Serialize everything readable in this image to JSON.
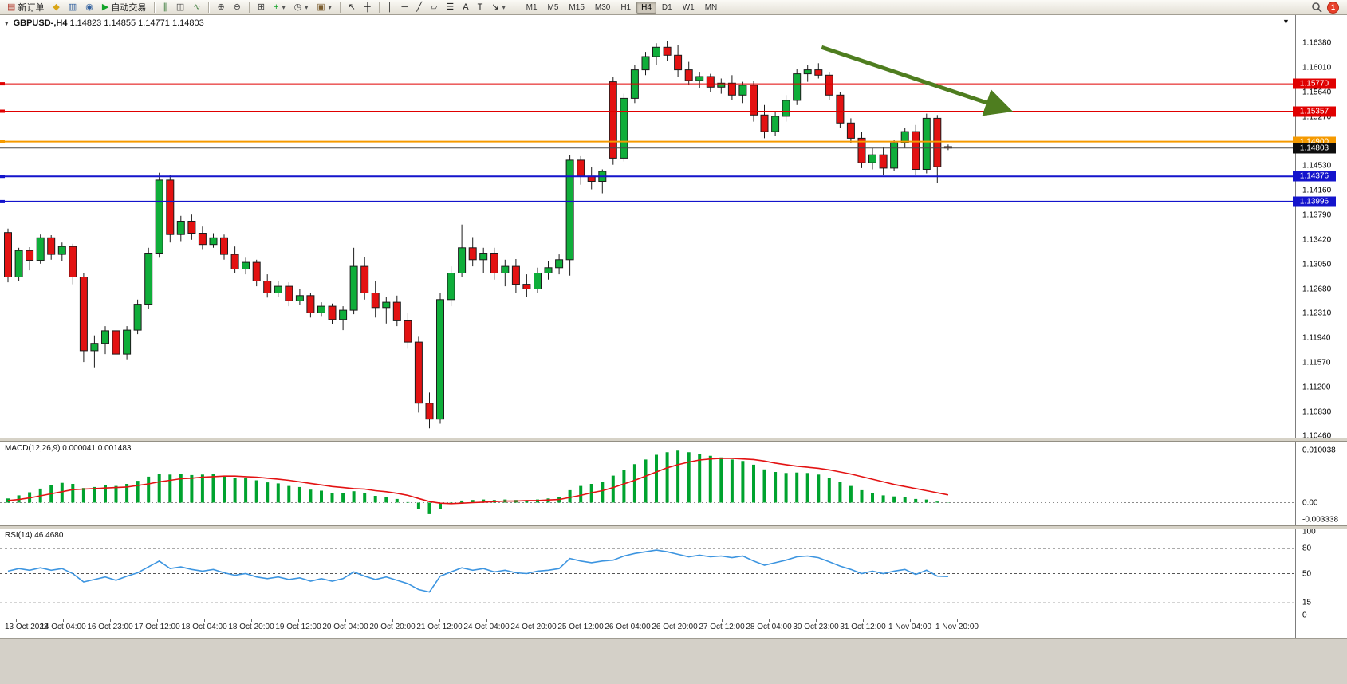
{
  "window": {
    "toolbar": {
      "items": [
        {
          "name": "new-order",
          "glyph": "▤",
          "color": "#b23b2e",
          "label": "新订单"
        },
        {
          "name": "alerts",
          "glyph": "◆",
          "color": "#d9a514"
        },
        {
          "name": "market-depth",
          "glyph": "▥",
          "color": "#33619e"
        },
        {
          "name": "community",
          "glyph": "◉",
          "color": "#33619e"
        },
        {
          "name": "auto-trading",
          "glyph": "▶",
          "color": "#12a428",
          "label": "自动交易"
        },
        {
          "sep": true
        },
        {
          "name": "chart-bars",
          "glyph": "∥",
          "color": "#3f7d3f"
        },
        {
          "name": "chart-candles",
          "glyph": "◫",
          "color": "#3f3f3f"
        },
        {
          "name": "chart-line",
          "glyph": "∿",
          "color": "#3f7d3f"
        },
        {
          "sep": true
        },
        {
          "name": "zoom-in",
          "glyph": "⊕",
          "color": "#444444"
        },
        {
          "name": "zoom-out",
          "glyph": "⊖",
          "color": "#444444"
        },
        {
          "sep": true
        },
        {
          "name": "tile-windows",
          "glyph": "⊞",
          "color": "#444444"
        },
        {
          "name": "indicators",
          "glyph": "+",
          "color": "#12a428",
          "dropdown": true
        },
        {
          "name": "periods",
          "glyph": "◷",
          "color": "#444444",
          "dropdown": true
        },
        {
          "name": "templates",
          "glyph": "▣",
          "color": "#7a5c2e",
          "dropdown": true
        },
        {
          "sep": true
        },
        {
          "name": "cursor",
          "glyph": "↖",
          "color": "#222222"
        },
        {
          "name": "crosshair",
          "glyph": "┼",
          "color": "#222222"
        },
        {
          "sep": true
        },
        {
          "name": "vertical-line",
          "glyph": "│",
          "color": "#222222"
        },
        {
          "name": "horizontal-line",
          "glyph": "─",
          "color": "#222222"
        },
        {
          "name": "trendline",
          "glyph": "╱",
          "color": "#222222"
        },
        {
          "name": "equidistant-channel",
          "glyph": "▱",
          "color": "#222222"
        },
        {
          "name": "fibonacci",
          "gly_x": "",
          "glyph": "☰",
          "color": "#222222"
        },
        {
          "name": "text",
          "glyph": "A",
          "color": "#222222"
        },
        {
          "name": "text-label",
          "glyph": "T",
          "color": "#222222"
        },
        {
          "name": "arrows-tool",
          "glyph": "↘",
          "color": "#222222",
          "dropdown": true
        }
      ],
      "timeframes": [
        "M1",
        "M5",
        "M15",
        "M30",
        "H1",
        "H4",
        "D1",
        "W1",
        "MN"
      ],
      "active_timeframe": "H4",
      "notification_count": "1"
    }
  },
  "chart_data": [
    {
      "type": "candlestick",
      "title": "GBPUSD-,H4",
      "ohlc_label": "1.14823 1.14855 1.14771 1.14803",
      "collapse_arrow": "▾",
      "shift_marker": "▼",
      "ylim": [
        1.1044,
        1.1666
      ],
      "y_ticks": [
        "1.16380",
        "1.16010",
        "1.15640",
        "1.15270",
        "1.14900",
        "1.14530",
        "1.14160",
        "1.13790",
        "1.13420",
        "1.13050",
        "1.12680",
        "1.12310",
        "1.11940",
        "1.11570",
        "1.11200",
        "1.10830",
        "1.10460"
      ],
      "x_labels": [
        "13 Oct 2022",
        "14 Oct 04:00",
        "16 Oct 23:00",
        "17 Oct 12:00",
        "18 Oct 04:00",
        "18 Oct 20:00",
        "19 Oct 12:00",
        "20 Oct 04:00",
        "20 Oct 20:00",
        "21 Oct 12:00",
        "24 Oct 04:00",
        "24 Oct 20:00",
        "25 Oct 12:00",
        "26 Oct 04:00",
        "26 Oct 20:00",
        "27 Oct 12:00",
        "28 Oct 04:00",
        "30 Oct 23:00",
        "31 Oct 12:00",
        "1 Nov 04:00",
        "1 Nov 20:00"
      ],
      "colors": {
        "up": "#0fae3a",
        "down": "#e31212",
        "outline": "#1c1c1c",
        "bid_line": "#4a4a4a",
        "bid_label_bg": "#0d0d0d"
      },
      "hlines": [
        {
          "price": 1.1577,
          "label": "1.15770",
          "color": "#e00000",
          "width": 1
        },
        {
          "price": 1.15357,
          "label": "1.15357",
          "color": "#e00000",
          "width": 1
        },
        {
          "price": 1.149,
          "label": "1.14900",
          "color": "#f59a00",
          "width": 2
        },
        {
          "price": 1.14376,
          "label": "1.14376",
          "color": "#1414cc",
          "width": 2
        },
        {
          "price": 1.13996,
          "label": "1.13996",
          "color": "#1414cc",
          "width": 2
        }
      ],
      "bid": {
        "price": 1.14803,
        "label": "1.14803"
      },
      "trend_arrow": {
        "color": "#4e7d1f",
        "from": {
          "bar": 75.3,
          "price": 1.1632
        },
        "to": {
          "bar": 92.3,
          "price": 1.1539
        }
      },
      "candles": [
        [
          1.1353,
          1.1359,
          1.1278,
          1.1286
        ],
        [
          1.1286,
          1.133,
          1.128,
          1.1326
        ],
        [
          1.1326,
          1.1331,
          1.1296,
          1.1311
        ],
        [
          1.1311,
          1.135,
          1.1306,
          1.1345
        ],
        [
          1.1345,
          1.1349,
          1.1312,
          1.132
        ],
        [
          1.132,
          1.1338,
          1.131,
          1.1332
        ],
        [
          1.1332,
          1.1336,
          1.1275,
          1.1286
        ],
        [
          1.1286,
          1.1292,
          1.1158,
          1.1175
        ],
        [
          1.1175,
          1.1198,
          1.115,
          1.1186
        ],
        [
          1.1186,
          1.1212,
          1.117,
          1.1205
        ],
        [
          1.1205,
          1.1215,
          1.1152,
          1.117
        ],
        [
          1.117,
          1.1212,
          1.1162,
          1.1206
        ],
        [
          1.1206,
          1.1252,
          1.12,
          1.1245
        ],
        [
          1.1245,
          1.133,
          1.1238,
          1.1322
        ],
        [
          1.1322,
          1.1443,
          1.1315,
          1.1432
        ],
        [
          1.1432,
          1.144,
          1.1338,
          1.135
        ],
        [
          1.135,
          1.1378,
          1.134,
          1.137
        ],
        [
          1.137,
          1.138,
          1.1342,
          1.1352
        ],
        [
          1.1352,
          1.1362,
          1.1328,
          1.1335
        ],
        [
          1.1335,
          1.1352,
          1.133,
          1.1345
        ],
        [
          1.1345,
          1.135,
          1.1312,
          1.132
        ],
        [
          1.132,
          1.1332,
          1.1292,
          1.1298
        ],
        [
          1.1298,
          1.1315,
          1.129,
          1.1308
        ],
        [
          1.1308,
          1.1312,
          1.1272,
          1.128
        ],
        [
          1.128,
          1.129,
          1.1255,
          1.1262
        ],
        [
          1.1262,
          1.128,
          1.1256,
          1.1272
        ],
        [
          1.1272,
          1.1278,
          1.1242,
          1.125
        ],
        [
          1.125,
          1.1268,
          1.1244,
          1.1258
        ],
        [
          1.1258,
          1.1262,
          1.1225,
          1.1232
        ],
        [
          1.1232,
          1.1248,
          1.1226,
          1.1242
        ],
        [
          1.1242,
          1.1246,
          1.1215,
          1.1222
        ],
        [
          1.1222,
          1.1242,
          1.1206,
          1.1236
        ],
        [
          1.1236,
          1.133,
          1.123,
          1.1302
        ],
        [
          1.1302,
          1.1316,
          1.1252,
          1.1262
        ],
        [
          1.1262,
          1.128,
          1.1225,
          1.124
        ],
        [
          1.124,
          1.1256,
          1.1216,
          1.1248
        ],
        [
          1.1248,
          1.1258,
          1.1212,
          1.122
        ],
        [
          1.122,
          1.1232,
          1.1178,
          1.1188
        ],
        [
          1.1188,
          1.1196,
          1.1082,
          1.1096
        ],
        [
          1.1096,
          1.1112,
          1.1058,
          1.1072
        ],
        [
          1.1072,
          1.1262,
          1.1065,
          1.1252
        ],
        [
          1.1252,
          1.1302,
          1.1242,
          1.1292
        ],
        [
          1.1292,
          1.1365,
          1.1286,
          1.133
        ],
        [
          1.133,
          1.1346,
          1.1302,
          1.1312
        ],
        [
          1.1312,
          1.133,
          1.1292,
          1.1322
        ],
        [
          1.1322,
          1.133,
          1.1282,
          1.1292
        ],
        [
          1.1292,
          1.1312,
          1.1272,
          1.1302
        ],
        [
          1.1302,
          1.1313,
          1.1262,
          1.1275
        ],
        [
          1.1275,
          1.129,
          1.1256,
          1.1268
        ],
        [
          1.1268,
          1.13,
          1.1262,
          1.1292
        ],
        [
          1.1292,
          1.131,
          1.1282,
          1.13
        ],
        [
          1.13,
          1.132,
          1.129,
          1.1312
        ],
        [
          1.1312,
          1.147,
          1.1288,
          1.1462
        ],
        [
          1.1462,
          1.1468,
          1.1425,
          1.1438
        ],
        [
          1.1438,
          1.1452,
          1.1418,
          1.143
        ],
        [
          1.143,
          1.1448,
          1.1412,
          1.1445
        ],
        [
          1.158,
          1.1588,
          1.1455,
          1.1465
        ],
        [
          1.1465,
          1.1562,
          1.146,
          1.1555
        ],
        [
          1.1555,
          1.1605,
          1.1548,
          1.1598
        ],
        [
          1.1598,
          1.1625,
          1.159,
          1.1618
        ],
        [
          1.1618,
          1.1638,
          1.1605,
          1.1632
        ],
        [
          1.1632,
          1.1642,
          1.1612,
          1.162
        ],
        [
          1.162,
          1.1635,
          1.1588,
          1.1598
        ],
        [
          1.1598,
          1.161,
          1.1575,
          1.1582
        ],
        [
          1.1582,
          1.1595,
          1.157,
          1.1588
        ],
        [
          1.1588,
          1.1592,
          1.1565,
          1.1572
        ],
        [
          1.1572,
          1.1585,
          1.1562,
          1.1578
        ],
        [
          1.1578,
          1.159,
          1.1552,
          1.156
        ],
        [
          1.156,
          1.158,
          1.1548,
          1.1575
        ],
        [
          1.1575,
          1.1582,
          1.152,
          1.153
        ],
        [
          1.153,
          1.1545,
          1.1495,
          1.1505
        ],
        [
          1.1505,
          1.1535,
          1.1498,
          1.1528
        ],
        [
          1.1528,
          1.156,
          1.152,
          1.1552
        ],
        [
          1.1552,
          1.16,
          1.1545,
          1.1592
        ],
        [
          1.1592,
          1.1605,
          1.158,
          1.1598
        ],
        [
          1.1598,
          1.1608,
          1.1585,
          1.159
        ],
        [
          1.159,
          1.1595,
          1.1552,
          1.156
        ],
        [
          1.156,
          1.1565,
          1.151,
          1.1518
        ],
        [
          1.1518,
          1.1525,
          1.1488,
          1.1495
        ],
        [
          1.1495,
          1.1505,
          1.145,
          1.1458
        ],
        [
          1.1458,
          1.148,
          1.1448,
          1.147
        ],
        [
          1.147,
          1.1482,
          1.144,
          1.145
        ],
        [
          1.145,
          1.1492,
          1.1445,
          1.1488
        ],
        [
          1.1488,
          1.151,
          1.148,
          1.1505
        ],
        [
          1.1505,
          1.1515,
          1.144,
          1.1448
        ],
        [
          1.1448,
          1.1532,
          1.1442,
          1.1525
        ],
        [
          1.1525,
          1.153,
          1.1428,
          1.1452
        ],
        [
          1.14823,
          1.14855,
          1.14771,
          1.14803
        ]
      ]
    },
    {
      "type": "macd",
      "title": "MACD(12,26,9)",
      "values_label": "0.000041 0.001483",
      "ylim": [
        -0.0036,
        0.0105
      ],
      "y_ticks": [
        {
          "v": 0.010038,
          "label": "0.010038"
        },
        {
          "v": 0,
          "label": "0.00"
        },
        {
          "v": -0.003338,
          "label": "-0.003338"
        }
      ],
      "colors": {
        "histogram": "#00a32e",
        "signal": "#e31212",
        "zero_line": "#8a8a8a"
      },
      "histogram": [
        0.0008,
        0.0014,
        0.002,
        0.0027,
        0.0033,
        0.0038,
        0.0036,
        0.0028,
        0.003,
        0.0034,
        0.0032,
        0.0036,
        0.0042,
        0.005,
        0.0056,
        0.0054,
        0.0055,
        0.0053,
        0.0054,
        0.0055,
        0.0052,
        0.0048,
        0.0047,
        0.0043,
        0.0039,
        0.0037,
        0.0032,
        0.003,
        0.0025,
        0.0023,
        0.0019,
        0.0018,
        0.0022,
        0.0018,
        0.0013,
        0.0011,
        0.0007,
        0.0001,
        -0.0012,
        -0.0022,
        -0.0012,
        -0.0003,
        0.0004,
        0.0005,
        0.0006,
        0.0005,
        0.0006,
        0.0005,
        0.0004,
        0.0006,
        0.0008,
        0.0011,
        0.0024,
        0.0032,
        0.0036,
        0.004,
        0.0052,
        0.0063,
        0.0074,
        0.0083,
        0.0092,
        0.0097,
        0.01,
        0.0097,
        0.0094,
        0.009,
        0.0087,
        0.0083,
        0.008,
        0.0073,
        0.0064,
        0.0059,
        0.0057,
        0.0058,
        0.0057,
        0.0054,
        0.0048,
        0.004,
        0.0032,
        0.0024,
        0.0019,
        0.0014,
        0.0012,
        0.0011,
        0.0007,
        0.0006,
        0.0002,
        4.1e-05
      ],
      "signal": [
        0.0004,
        0.0006,
        0.0009,
        0.0013,
        0.0017,
        0.0021,
        0.0025,
        0.0026,
        0.0027,
        0.0028,
        0.0029,
        0.003,
        0.0033,
        0.0036,
        0.004,
        0.0043,
        0.0046,
        0.0047,
        0.0049,
        0.005,
        0.0051,
        0.0051,
        0.005,
        0.0049,
        0.0047,
        0.0045,
        0.0043,
        0.004,
        0.0037,
        0.0034,
        0.0031,
        0.0029,
        0.0027,
        0.0026,
        0.0023,
        0.0021,
        0.0018,
        0.0014,
        0.0008,
        0.0002,
        -0.0001,
        -0.0002,
        -0.0001,
        0.0,
        0.0001,
        0.0002,
        0.0003,
        0.0003,
        0.0004,
        0.0004,
        0.0005,
        0.0006,
        0.001,
        0.0014,
        0.0019,
        0.0023,
        0.0029,
        0.0036,
        0.0043,
        0.0051,
        0.0059,
        0.0067,
        0.0073,
        0.0078,
        0.0082,
        0.0084,
        0.0085,
        0.0085,
        0.0084,
        0.0083,
        0.008,
        0.0076,
        0.0073,
        0.007,
        0.0068,
        0.0066,
        0.0063,
        0.0059,
        0.0055,
        0.005,
        0.0045,
        0.004,
        0.0035,
        0.0031,
        0.0027,
        0.0023,
        0.0019,
        0.001483
      ]
    },
    {
      "type": "rsi",
      "title": "RSI(14)",
      "value_label": "46.4680",
      "ylim": [
        0,
        100
      ],
      "levels": [
        80,
        50,
        15
      ],
      "y_ticks": [
        {
          "v": 100,
          "label": "100"
        },
        {
          "v": 80,
          "label": "80"
        },
        {
          "v": 50,
          "label": "50"
        },
        {
          "v": 15,
          "label": "15"
        },
        {
          "v": 0,
          "label": "0"
        }
      ],
      "colors": {
        "line": "#3d95e0",
        "level_line": "#555555"
      },
      "values": [
        53,
        56,
        54,
        57,
        54,
        56,
        50,
        40,
        43,
        46,
        42,
        47,
        51,
        58,
        65,
        56,
        58,
        55,
        53,
        55,
        51,
        48,
        50,
        46,
        44,
        46,
        43,
        45,
        41,
        44,
        41,
        44,
        52,
        47,
        43,
        46,
        42,
        38,
        31,
        28,
        47,
        52,
        57,
        54,
        56,
        52,
        54,
        51,
        50,
        53,
        54,
        56,
        68,
        65,
        63,
        65,
        66,
        71,
        74,
        76,
        78,
        76,
        73,
        70,
        72,
        70,
        71,
        69,
        71,
        65,
        60,
        63,
        66,
        70,
        71,
        69,
        64,
        59,
        55,
        50,
        53,
        50,
        53,
        55,
        49,
        54,
        47,
        46.468
      ]
    }
  ]
}
